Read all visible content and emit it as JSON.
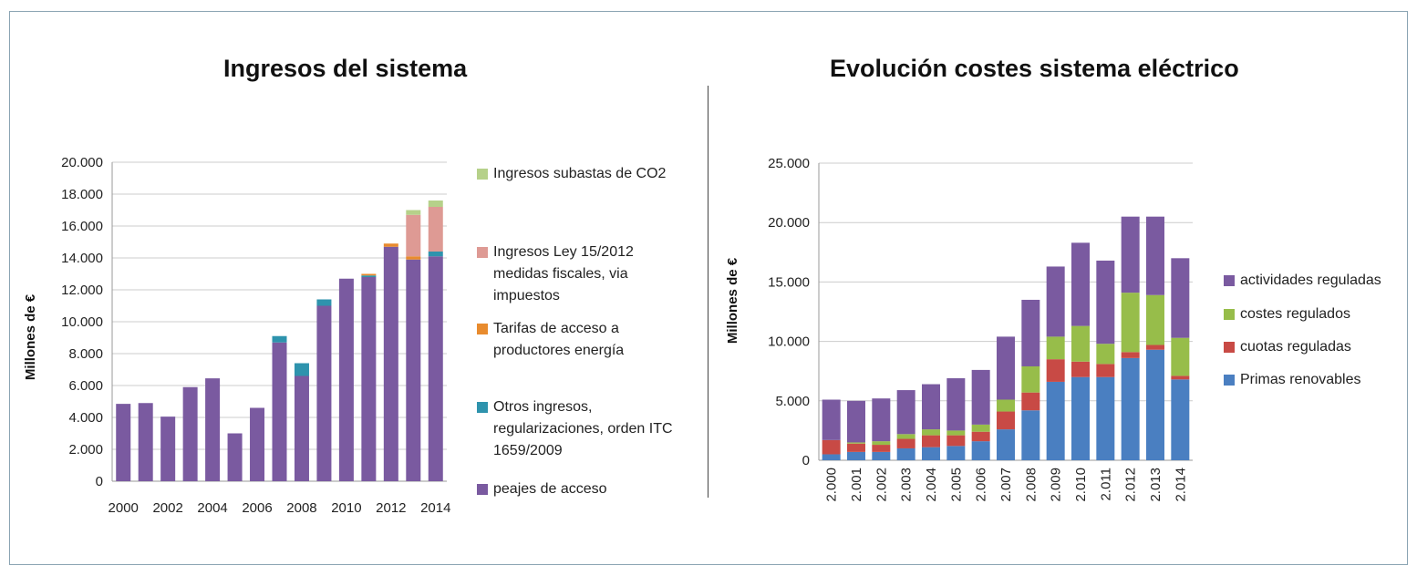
{
  "colors": {
    "purple": "#7a5aa0",
    "teal": "#2e93ad",
    "orange": "#e88b2e",
    "pink": "#de9a94",
    "lightgreen": "#b6d18a",
    "blue": "#4a7fc1",
    "red": "#c84a45",
    "green": "#97bd4a",
    "grid": "#cccccc",
    "axis": "#999999"
  },
  "chart_data": [
    {
      "type": "bar",
      "stacked": true,
      "title": "Ingresos del sistema",
      "ylabel": "Millones de €",
      "xlabel": "",
      "ylim": [
        0,
        20000
      ],
      "yticks": [
        0,
        2000,
        4000,
        6000,
        8000,
        10000,
        12000,
        14000,
        16000,
        18000,
        20000
      ],
      "ytick_labels": [
        "0",
        "2.000",
        "4.000",
        "6.000",
        "8.000",
        "10.000",
        "12.000",
        "14.000",
        "16.000",
        "18.000",
        "20.000"
      ],
      "categories": [
        "2000",
        "2001",
        "2002",
        "2003",
        "2004",
        "2005",
        "2006",
        "2007",
        "2008",
        "2009",
        "2010",
        "2011",
        "2012",
        "2013",
        "2014"
      ],
      "xtick_labels": [
        "2000",
        "",
        "2002",
        "",
        "2004",
        "",
        "2006",
        "",
        "2008",
        "",
        "2010",
        "",
        "2012",
        "",
        "2014"
      ],
      "series": [
        {
          "name": "peajes de acceso",
          "color": "#7a5aa0",
          "values": [
            4850,
            4900,
            4050,
            5900,
            6450,
            3000,
            4600,
            8700,
            6600,
            11000,
            12700,
            12800,
            14700,
            13900,
            14100
          ]
        },
        {
          "name": "Otros ingresos, regularizaciones, orden ITC 1659/2009",
          "color": "#2e93ad",
          "values": [
            0,
            0,
            0,
            0,
            0,
            0,
            0,
            400,
            800,
            400,
            0,
            100,
            0,
            0,
            300
          ]
        },
        {
          "name": "Tarifas de acceso a productores energía",
          "color": "#e88b2e",
          "values": [
            0,
            0,
            0,
            0,
            0,
            0,
            0,
            0,
            0,
            0,
            0,
            100,
            200,
            200,
            0
          ]
        },
        {
          "name": "Ingresos Ley 15/2012 medidas fiscales, via impuestos",
          "color": "#de9a94",
          "values": [
            0,
            0,
            0,
            0,
            0,
            0,
            0,
            0,
            0,
            0,
            0,
            0,
            0,
            2600,
            2800
          ]
        },
        {
          "name": "Ingresos subastas de CO2",
          "color": "#b6d18a",
          "values": [
            0,
            0,
            0,
            0,
            0,
            0,
            0,
            0,
            0,
            0,
            0,
            0,
            0,
            300,
            400
          ]
        }
      ],
      "legend": {
        "placement": "right",
        "entries": [
          {
            "lines": [
              "Ingresos subastas de CO2"
            ],
            "color": "#b6d18a"
          },
          {
            "lines": [
              "Ingresos Ley 15/2012",
              "medidas fiscales, via",
              "impuestos"
            ],
            "color": "#de9a94"
          },
          {
            "lines": [
              "Tarifas de acceso a",
              "productores energía"
            ],
            "color": "#e88b2e"
          },
          {
            "lines": [
              "Otros ingresos,",
              "regularizaciones, orden ITC",
              "1659/2009"
            ],
            "color": "#2e93ad"
          },
          {
            "lines": [
              "peajes de acceso"
            ],
            "color": "#7a5aa0"
          }
        ]
      },
      "grid": true
    },
    {
      "type": "bar",
      "stacked": true,
      "title": "Evolución costes sistema eléctrico",
      "ylabel": "Millones de €",
      "xlabel": "",
      "ylim": [
        0,
        25000
      ],
      "yticks": [
        0,
        5000,
        10000,
        15000,
        20000,
        25000
      ],
      "ytick_labels": [
        "0",
        "5.000",
        "10.000",
        "15.000",
        "20.000",
        "25.000"
      ],
      "categories": [
        "2.000",
        "2.001",
        "2.002",
        "2.003",
        "2.004",
        "2.005",
        "2.006",
        "2.007",
        "2.008",
        "2.009",
        "2.010",
        "2.011",
        "2.012",
        "2.013",
        "2.014"
      ],
      "series": [
        {
          "name": "Primas renovables",
          "color": "#4a7fc1",
          "values": [
            500,
            700,
            700,
            1000,
            1100,
            1200,
            1600,
            2600,
            4200,
            6600,
            7000,
            7000,
            8600,
            9300,
            6800
          ]
        },
        {
          "name": "cuotas reguladas",
          "color": "#c84a45",
          "values": [
            1200,
            700,
            600,
            800,
            1000,
            900,
            800,
            1500,
            1500,
            1900,
            1300,
            1100,
            500,
            400,
            300
          ]
        },
        {
          "name": "costes regulados",
          "color": "#97bd4a",
          "values": [
            0,
            100,
            300,
            400,
            500,
            400,
            600,
            1000,
            2200,
            1900,
            3000,
            1700,
            5000,
            4200,
            3200
          ]
        },
        {
          "name": "actividades reguladas",
          "color": "#7a5aa0",
          "values": [
            3400,
            3500,
            3600,
            3700,
            3800,
            4400,
            4600,
            5300,
            5600,
            5900,
            7000,
            7000,
            6400,
            6600,
            6700
          ]
        }
      ],
      "legend": {
        "placement": "right",
        "entries": [
          {
            "lines": [
              "actividades reguladas"
            ],
            "color": "#7a5aa0"
          },
          {
            "lines": [
              "costes regulados"
            ],
            "color": "#97bd4a"
          },
          {
            "lines": [
              "cuotas reguladas"
            ],
            "color": "#c84a45"
          },
          {
            "lines": [
              "Primas renovables"
            ],
            "color": "#4a7fc1"
          }
        ]
      },
      "grid": true
    }
  ]
}
